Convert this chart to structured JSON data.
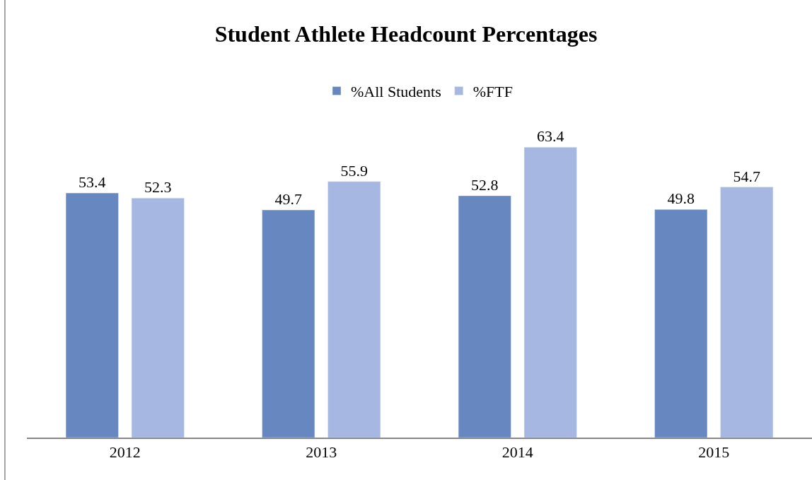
{
  "chart_data": {
    "type": "bar",
    "title": "Student Athlete Headcount Percentages",
    "categories": [
      "2012",
      "2013",
      "2014",
      "2015"
    ],
    "series": [
      {
        "name": "%All Students",
        "color": "#6787c0",
        "values": [
          53.4,
          49.7,
          52.8,
          49.8
        ]
      },
      {
        "name": "%FTF",
        "color": "#a6b8e2",
        "values": [
          52.3,
          55.9,
          63.4,
          54.7
        ]
      }
    ],
    "data_labels": true,
    "legend": "top"
  }
}
